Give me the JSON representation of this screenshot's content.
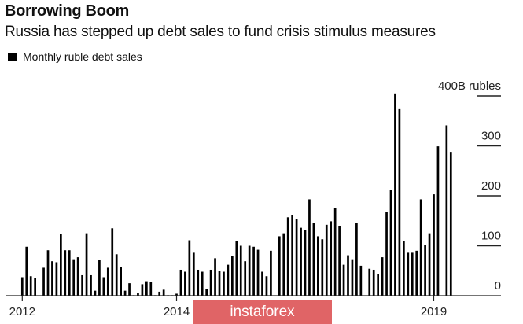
{
  "chart_data": {
    "type": "bar",
    "title": "Borrowing Boom",
    "subtitle": "Russia has stepped up debt sales to fund crisis stimulus measures",
    "legend": [
      {
        "name": "Monthly ruble debt sales",
        "color": "#000000"
      }
    ],
    "legend_position": "top-left",
    "ylabel": "",
    "y_unit_label": "400B rubles",
    "ylim": [
      0,
      400
    ],
    "yticks": [
      0,
      100,
      200,
      300,
      400
    ],
    "ytick_labels": [
      "0",
      "100",
      "200",
      "300",
      "400B rubles"
    ],
    "xticks": [
      {
        "month_index": 0,
        "label": "2012"
      },
      {
        "month_index": 36,
        "label": "2014"
      },
      {
        "month_index": 96,
        "label": "2019"
      }
    ],
    "series": [
      {
        "name": "Monthly ruble debt sales",
        "values": [
          37,
          98,
          39,
          35,
          0,
          56,
          91,
          69,
          67,
          123,
          91,
          91,
          73,
          77,
          41,
          125,
          41,
          10,
          71,
          37,
          56,
          135,
          83,
          58,
          10,
          25,
          1,
          6,
          23,
          29,
          27,
          1,
          8,
          12,
          1,
          1,
          4,
          52,
          48,
          111,
          86,
          52,
          48,
          14,
          52,
          75,
          50,
          48,
          62,
          79,
          109,
          100,
          69,
          100,
          98,
          92,
          48,
          39,
          90,
          0,
          119,
          125,
          157,
          161,
          153,
          136,
          132,
          193,
          146,
          119,
          113,
          142,
          149,
          176,
          140,
          62,
          81,
          73,
          146,
          60,
          0,
          54,
          52,
          44,
          77,
          167,
          212,
          405,
          375,
          109,
          86,
          86,
          90,
          193,
          102,
          125,
          203,
          299,
          0,
          341,
          288
        ]
      }
    ]
  },
  "watermark": "instaforex",
  "colors": {
    "bar": "#000000",
    "watermark_bg": "#e06466"
  }
}
